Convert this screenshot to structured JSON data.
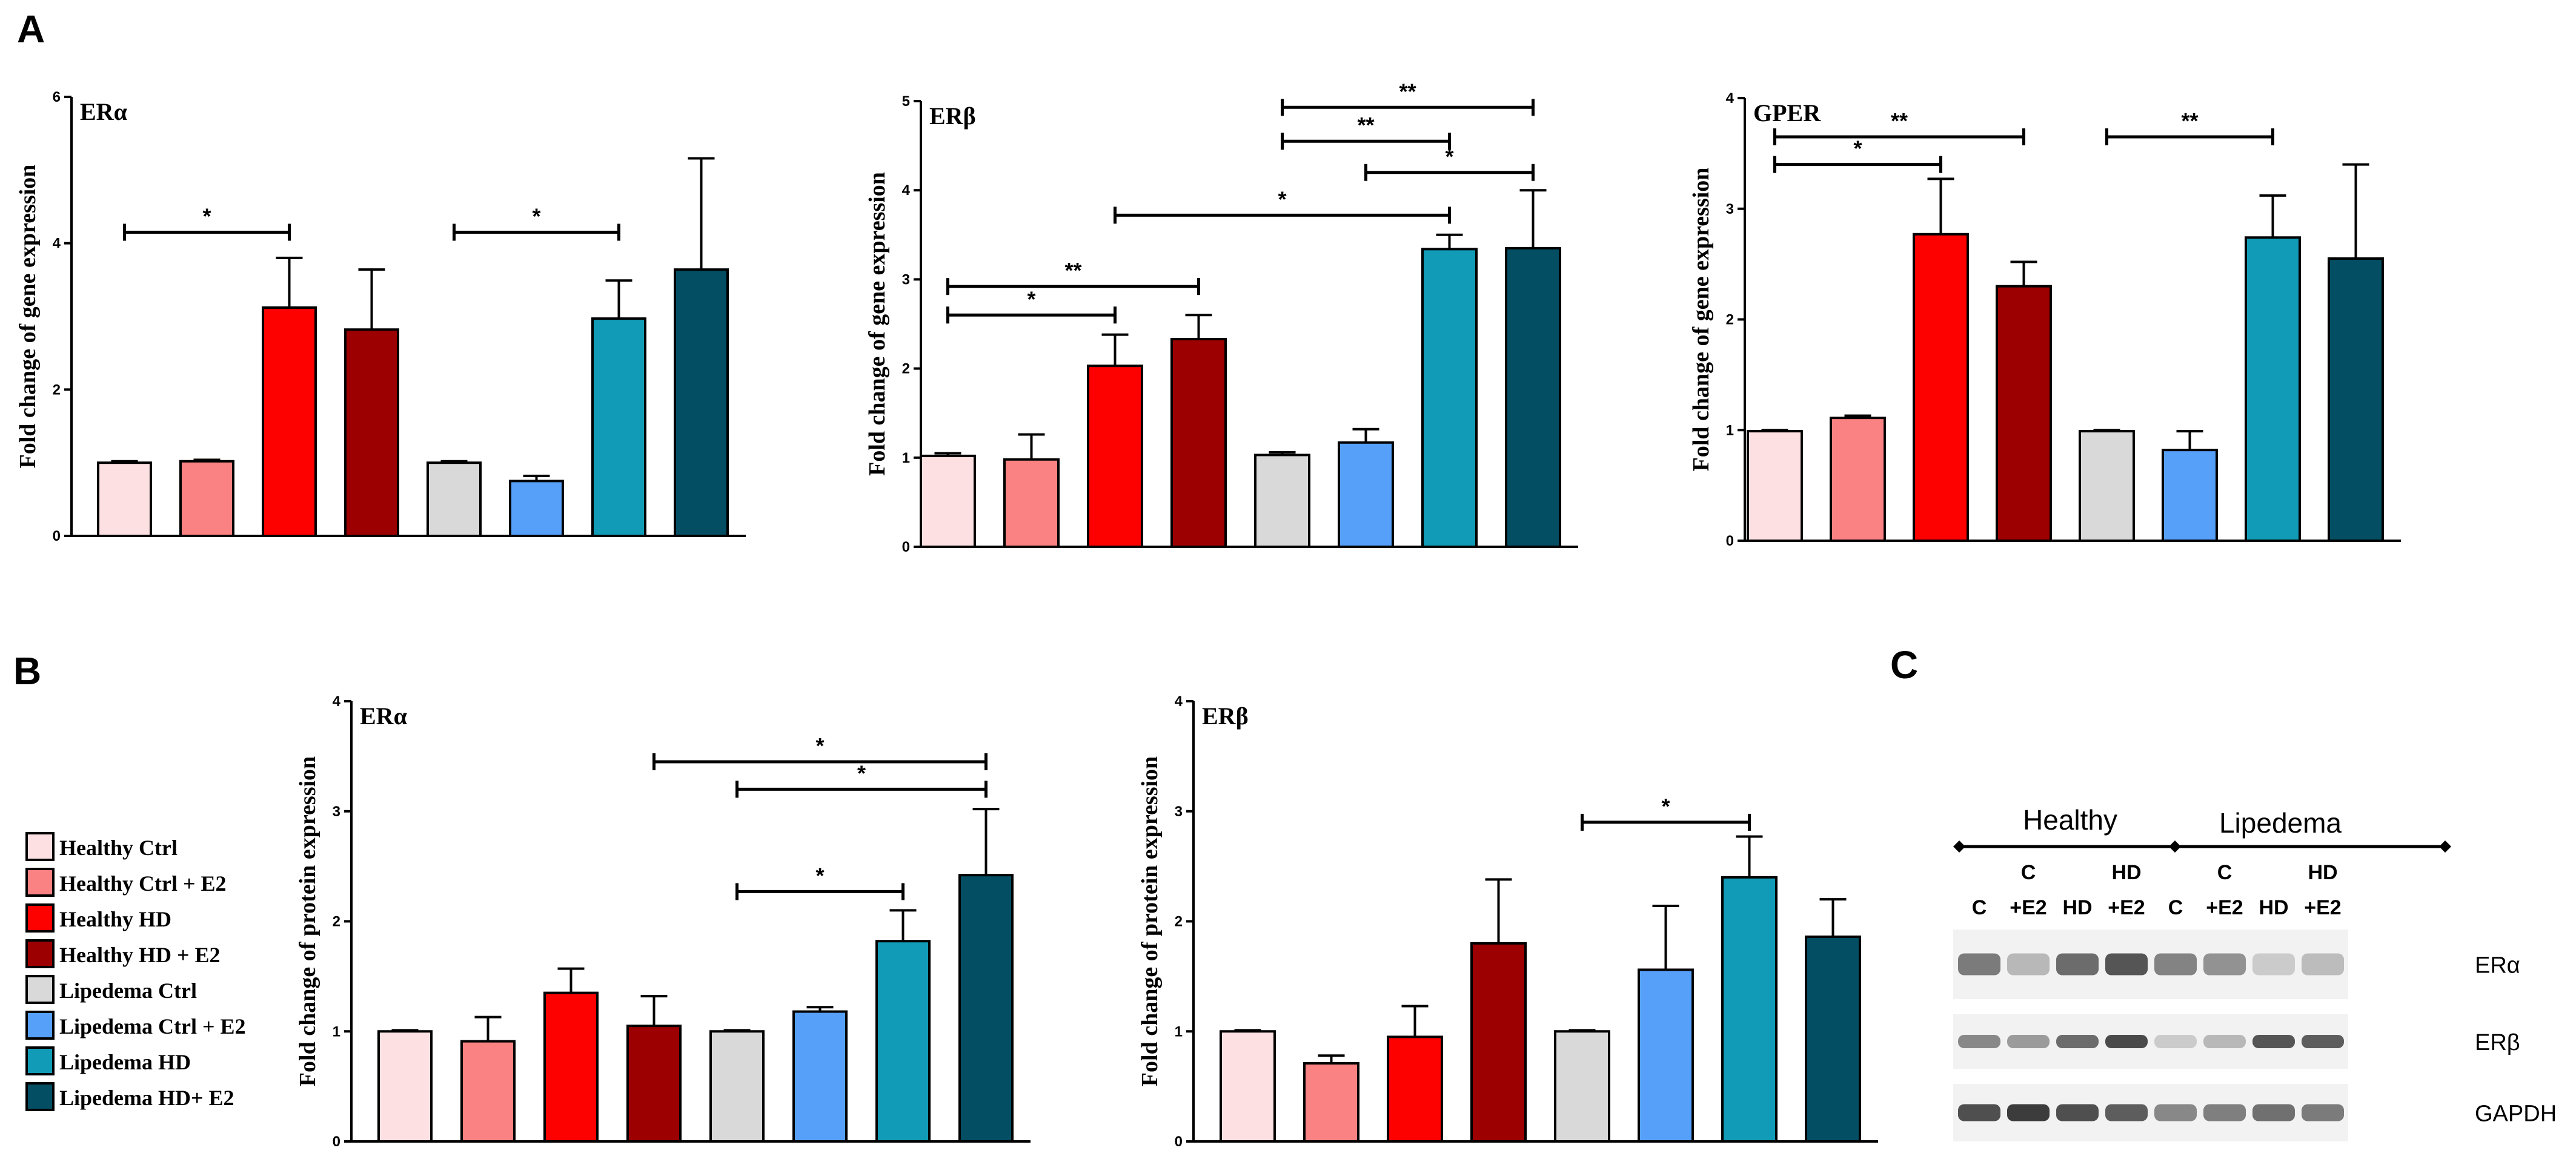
{
  "panels": [
    {
      "label": "A"
    },
    {
      "label": "B"
    },
    {
      "label": "C"
    }
  ],
  "legend": {
    "items": [
      {
        "label": "Healthy Ctrl",
        "color": "#fde0e2"
      },
      {
        "label": "Healthy Ctrl + E2",
        "color": "#fb8282"
      },
      {
        "label": "Healthy HD",
        "color": "#fd0000"
      },
      {
        "label": "Healthy HD + E2",
        "color": "#9c0000"
      },
      {
        "label": "Lipedema Ctrl",
        "color": "#d9d9d9"
      },
      {
        "label": "Lipedema Ctrl + E2",
        "color": "#56a0fa"
      },
      {
        "label": "Lipedema HD",
        "color": "#119bb6"
      },
      {
        "label": "Lipedema HD+ E2",
        "color": "#034e62"
      }
    ]
  },
  "chart_data": [
    {
      "type": "bar",
      "panel": "A",
      "title": "ERα",
      "ylabel": "Fold change of gene expression",
      "ylim": [
        0,
        6
      ],
      "yticks": [
        "0",
        "2",
        "4",
        "6"
      ],
      "categories": [
        "Healthy Ctrl",
        "Healthy Ctrl + E2",
        "Healthy HD",
        "Healthy HD + E2",
        "Lipedema Ctrl",
        "Lipedema Ctrl + E2",
        "Lipedema HD",
        "Lipedema HD+ E2"
      ],
      "values": [
        1.0,
        1.02,
        3.12,
        2.82,
        1.0,
        0.75,
        2.97,
        3.64
      ],
      "errors": [
        0.02,
        0.02,
        0.68,
        0.82,
        0.02,
        0.07,
        0.52,
        1.52
      ],
      "significance": [
        {
          "from": 0,
          "to": 2,
          "y": 4.15,
          "label": "*"
        },
        {
          "from": 4,
          "to": 6,
          "y": 4.15,
          "label": "*"
        }
      ]
    },
    {
      "type": "bar",
      "panel": "A",
      "title": "ERβ",
      "ylabel": "Fold change of gene expression",
      "ylim": [
        0,
        5
      ],
      "yticks": [
        "0",
        "1",
        "2",
        "3",
        "4",
        "5"
      ],
      "categories": [
        "Healthy Ctrl",
        "Healthy Ctrl + E2",
        "Healthy HD",
        "Healthy HD + E2",
        "Lipedema Ctrl",
        "Lipedema Ctrl + E2",
        "Lipedema HD",
        "Lipedema HD+ E2"
      ],
      "values": [
        1.02,
        0.98,
        2.03,
        2.33,
        1.03,
        1.17,
        3.34,
        3.35
      ],
      "errors": [
        0.03,
        0.28,
        0.35,
        0.27,
        0.03,
        0.15,
        0.16,
        0.65
      ],
      "significance": [
        {
          "from": 0,
          "to": 2,
          "y": 2.6,
          "label": "*"
        },
        {
          "from": 0,
          "to": 3,
          "y": 2.92,
          "label": "**"
        },
        {
          "from": 2,
          "to": 6,
          "y": 3.72,
          "label": "*"
        },
        {
          "from": 5,
          "to": 7,
          "y": 4.2,
          "label": "*"
        },
        {
          "from": 4,
          "to": 6,
          "y": 4.55,
          "label": "**"
        },
        {
          "from": 4,
          "to": 7,
          "y": 4.93,
          "label": "**"
        }
      ]
    },
    {
      "type": "bar",
      "panel": "A",
      "title": "GPER",
      "ylabel": "Fold change of gene expression",
      "ylim": [
        0,
        4
      ],
      "yticks": [
        "0",
        "1",
        "2",
        "3",
        "4"
      ],
      "categories": [
        "Healthy Ctrl",
        "Healthy Ctrl + E2",
        "Healthy HD",
        "Healthy HD + E2",
        "Lipedema Ctrl",
        "Lipedema Ctrl + E2",
        "Lipedema HD",
        "Lipedema HD+ E2"
      ],
      "values": [
        0.99,
        1.11,
        2.77,
        2.3,
        0.99,
        0.82,
        2.74,
        2.55
      ],
      "errors": [
        0.01,
        0.02,
        0.5,
        0.22,
        0.01,
        0.17,
        0.38,
        0.85
      ],
      "significance": [
        {
          "from": 0,
          "to": 2,
          "y": 3.4,
          "label": "*"
        },
        {
          "from": 0,
          "to": 3,
          "y": 3.65,
          "label": "**"
        },
        {
          "from": 4,
          "to": 6,
          "y": 3.65,
          "label": "**"
        }
      ]
    },
    {
      "type": "bar",
      "panel": "B",
      "title": "ERα",
      "ylabel": "Fold change of protein expression",
      "ylim": [
        0,
        4
      ],
      "yticks": [
        "0",
        "1",
        "2",
        "3",
        "4"
      ],
      "categories": [
        "Healthy Ctrl",
        "Healthy Ctrl + E2",
        "Healthy HD",
        "Healthy HD + E2",
        "Lipedema Ctrl",
        "Lipedema Ctrl + E2",
        "Lipedema HD",
        "Lipedema HD+ E2"
      ],
      "values": [
        1.0,
        0.91,
        1.35,
        1.05,
        1.0,
        1.18,
        1.82,
        2.42
      ],
      "errors": [
        0.01,
        0.22,
        0.22,
        0.27,
        0.01,
        0.04,
        0.28,
        0.6
      ],
      "significance": [
        {
          "from": 4,
          "to": 6,
          "y": 2.27,
          "label": "*"
        },
        {
          "from": 4,
          "to": 7,
          "y": 3.2,
          "label": "*"
        },
        {
          "from": 3,
          "to": 7,
          "y": 3.45,
          "label": "*"
        }
      ]
    },
    {
      "type": "bar",
      "panel": "B",
      "title": "ERβ",
      "ylabel": "Fold change of protein expression",
      "ylim": [
        0,
        4
      ],
      "yticks": [
        "0",
        "1",
        "2",
        "3",
        "4"
      ],
      "categories": [
        "Healthy Ctrl",
        "Healthy Ctrl + E2",
        "Healthy HD",
        "Healthy HD + E2",
        "Lipedema Ctrl",
        "Lipedema Ctrl + E2",
        "Lipedema HD",
        "Lipedema HD+ E2"
      ],
      "values": [
        1.0,
        0.71,
        0.95,
        1.8,
        1.0,
        1.56,
        2.4,
        1.86
      ],
      "errors": [
        0.01,
        0.07,
        0.28,
        0.58,
        0.01,
        0.58,
        0.37,
        0.34
      ],
      "significance": [
        {
          "from": 4,
          "to": 6,
          "y": 2.9,
          "label": "*"
        }
      ]
    }
  ],
  "blot": {
    "groups": [
      "Healthy",
      "Lipedema"
    ],
    "lanes": [
      {
        "top": "",
        "bottom": "C"
      },
      {
        "top": "C",
        "bottom": "+E2"
      },
      {
        "top": "",
        "bottom": "HD"
      },
      {
        "top": "HD",
        "bottom": "+E2"
      },
      {
        "top": "",
        "bottom": "C"
      },
      {
        "top": "C",
        "bottom": "+E2"
      },
      {
        "top": "",
        "bottom": "HD"
      },
      {
        "top": "HD",
        "bottom": "+E2"
      }
    ],
    "rows": [
      {
        "label": "ERα",
        "intensity": [
          0.62,
          0.3,
          0.7,
          0.82,
          0.58,
          0.5,
          0.2,
          0.28
        ]
      },
      {
        "label": "ERβ",
        "intensity": [
          0.55,
          0.45,
          0.7,
          0.88,
          0.2,
          0.3,
          0.82,
          0.78
        ]
      },
      {
        "label": "GAPDH",
        "intensity": [
          0.85,
          0.95,
          0.85,
          0.78,
          0.55,
          0.6,
          0.68,
          0.62
        ]
      }
    ]
  }
}
